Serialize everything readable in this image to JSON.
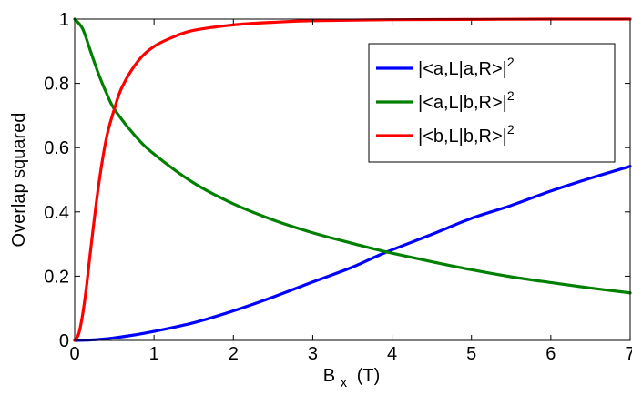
{
  "chart_data": {
    "type": "line",
    "title": "",
    "xlabel": {
      "main": "B",
      "sub": "x",
      "unit": "(T)"
    },
    "ylabel": "Overlap squared",
    "xlim": [
      0,
      7
    ],
    "ylim": [
      0,
      1
    ],
    "xticks": [
      0,
      1,
      2,
      3,
      4,
      5,
      6,
      7
    ],
    "yticks": [
      0,
      0.2,
      0.4,
      0.6,
      0.8,
      1
    ],
    "yticklabels": [
      "0",
      "0.2",
      "0.4",
      "0.6",
      "0.8",
      "1"
    ],
    "grid": false,
    "legend_placement": "top-right",
    "series": [
      {
        "legend_label": "|<a,L|a,R>|",
        "legend_exponent": "2",
        "color": "#0000ff",
        "x": [
          0,
          0.25,
          0.5,
          0.75,
          1,
          1.5,
          2,
          2.5,
          3,
          3.5,
          3.9,
          4.5,
          5,
          5.5,
          6,
          6.5,
          7
        ],
        "y": [
          0,
          0.002,
          0.008,
          0.017,
          0.028,
          0.055,
          0.092,
          0.135,
          0.182,
          0.228,
          0.272,
          0.33,
          0.38,
          0.42,
          0.465,
          0.505,
          0.542
        ]
      },
      {
        "legend_label": "|<a,L|b,R>|",
        "legend_exponent": "2",
        "color": "#008000",
        "x": [
          0,
          0.1,
          0.2,
          0.3,
          0.4,
          0.5,
          0.75,
          1,
          1.5,
          2,
          2.5,
          3,
          3.5,
          3.9,
          4.5,
          5,
          5.5,
          6,
          6.5,
          7
        ],
        "y": [
          1,
          0.97,
          0.9,
          0.83,
          0.77,
          0.72,
          0.64,
          0.58,
          0.49,
          0.425,
          0.375,
          0.335,
          0.302,
          0.277,
          0.245,
          0.22,
          0.198,
          0.18,
          0.163,
          0.148
        ]
      },
      {
        "legend_label": "|<b,L|b,R>|",
        "legend_exponent": "2",
        "color": "#ff0000",
        "x": [
          0,
          0.05,
          0.1,
          0.15,
          0.2,
          0.3,
          0.4,
          0.5,
          0.6,
          0.8,
          1,
          1.25,
          1.5,
          2,
          2.5,
          3,
          4,
          5,
          6,
          7
        ],
        "y": [
          0,
          0.02,
          0.08,
          0.17,
          0.28,
          0.48,
          0.63,
          0.72,
          0.79,
          0.87,
          0.915,
          0.945,
          0.965,
          0.982,
          0.99,
          0.995,
          0.998,
          0.999,
          1,
          1
        ]
      }
    ]
  }
}
